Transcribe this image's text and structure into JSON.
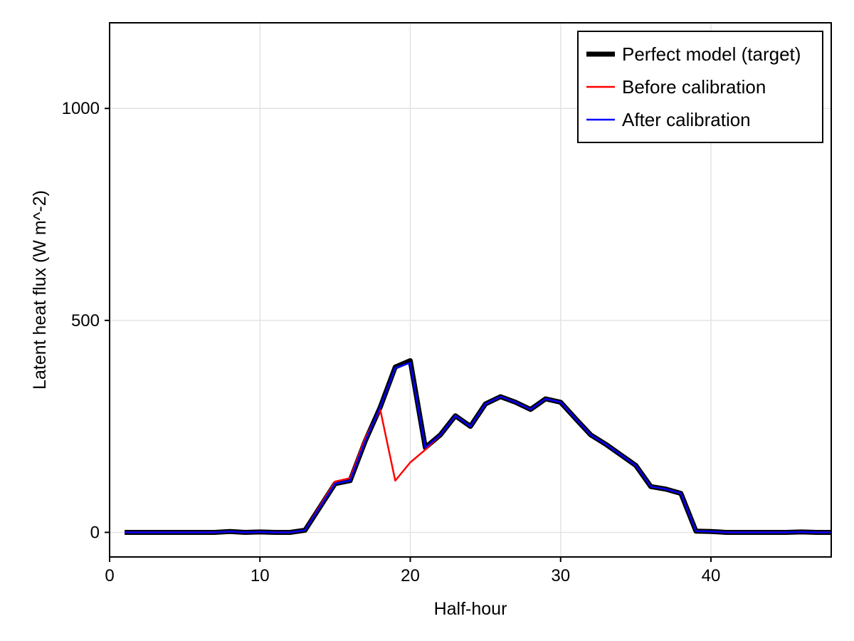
{
  "chart_data": {
    "type": "line",
    "title": "",
    "xlabel": "Half-hour",
    "ylabel": "Latent heat flux (W m^-2)",
    "xlim": [
      0,
      48
    ],
    "ylim": [
      -58,
      1202
    ],
    "xticks": [
      0,
      10,
      20,
      30,
      40
    ],
    "yticks": [
      0,
      500,
      1000
    ],
    "xtick_labels": [
      "0",
      "10",
      "20",
      "30",
      "40"
    ],
    "ytick_labels": [
      "0",
      "500",
      "1000"
    ],
    "grid": true,
    "legend_position": "top-right",
    "x": [
      1,
      2,
      3,
      4,
      5,
      6,
      7,
      8,
      9,
      10,
      11,
      12,
      13,
      14,
      15,
      16,
      17,
      18,
      19,
      20,
      21,
      22,
      23,
      24,
      25,
      26,
      27,
      28,
      29,
      30,
      31,
      32,
      33,
      34,
      35,
      36,
      37,
      38,
      39,
      40,
      41,
      42,
      43,
      44,
      45,
      46,
      47,
      48
    ],
    "series": [
      {
        "name": "Perfect model (target)",
        "color": "#000000",
        "values": [
          0,
          0,
          0,
          0,
          0,
          0,
          0,
          2,
          0,
          1,
          0,
          0,
          5,
          60,
          115,
          122,
          215,
          295,
          390,
          405,
          200,
          230,
          275,
          250,
          303,
          320,
          307,
          290,
          315,
          307,
          268,
          230,
          208,
          183,
          158,
          108,
          102,
          92,
          3,
          2,
          0,
          0,
          0,
          0,
          0,
          1,
          0,
          0
        ]
      },
      {
        "name": "Before calibration",
        "color": "#ff0000",
        "values": [
          0,
          0,
          0,
          0,
          0,
          0,
          0,
          2,
          0,
          1,
          0,
          0,
          5,
          63,
          120,
          128,
          222,
          290,
          122,
          165,
          195,
          230,
          275,
          250,
          303,
          320,
          307,
          290,
          315,
          307,
          268,
          230,
          208,
          183,
          158,
          108,
          102,
          92,
          3,
          2,
          0,
          0,
          0,
          0,
          0,
          1,
          0,
          0
        ]
      },
      {
        "name": "After calibration",
        "color": "#0000ff",
        "values": [
          0,
          0,
          0,
          0,
          0,
          0,
          0,
          2,
          0,
          1,
          0,
          0,
          5,
          60,
          115,
          122,
          215,
          295,
          388,
          400,
          200,
          230,
          275,
          250,
          303,
          320,
          307,
          290,
          315,
          307,
          268,
          230,
          208,
          183,
          158,
          108,
          102,
          92,
          3,
          2,
          0,
          0,
          0,
          0,
          0,
          1,
          0,
          0
        ]
      }
    ]
  }
}
